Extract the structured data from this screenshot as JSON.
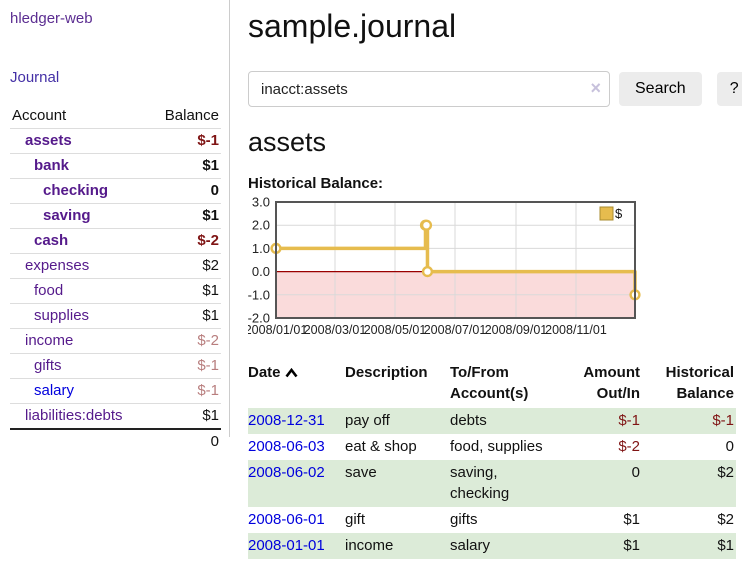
{
  "sidebar": {
    "app_title": "hledger-web",
    "journal_link": "Journal",
    "accounts_table": {
      "headers": {
        "account": "Account",
        "balance": "Balance"
      },
      "rows": [
        {
          "name": "assets",
          "balance": "$-1",
          "depth": 1,
          "bold": true,
          "balance_color": "neg-strong"
        },
        {
          "name": "bank",
          "balance": "$1",
          "depth": 2,
          "bold": true,
          "balance_color": "bal-normal"
        },
        {
          "name": "checking",
          "balance": "0",
          "depth": 3,
          "bold": true,
          "balance_color": "bal-normal"
        },
        {
          "name": "saving",
          "balance": "$1",
          "depth": 3,
          "bold": true,
          "balance_color": "bal-normal"
        },
        {
          "name": "cash",
          "balance": "$-2",
          "depth": 2,
          "bold": true,
          "balance_color": "neg-strong"
        },
        {
          "name": "expenses",
          "balance": "$2",
          "depth": 1,
          "bold": false,
          "balance_color": "bal-normal"
        },
        {
          "name": "food",
          "balance": "$1",
          "depth": 2,
          "bold": false,
          "balance_color": "bal-normal"
        },
        {
          "name": "supplies",
          "balance": "$1",
          "depth": 2,
          "bold": false,
          "balance_color": "bal-normal"
        },
        {
          "name": "income",
          "balance": "$-2",
          "depth": 1,
          "bold": false,
          "balance_color": "neg-soft"
        },
        {
          "name": "gifts",
          "balance": "$-1",
          "depth": 2,
          "bold": false,
          "balance_color": "neg-soft"
        },
        {
          "name": "salary",
          "balance": "$-1",
          "depth": 2,
          "bold": false,
          "balance_color": "neg-soft",
          "link_color": "blue"
        },
        {
          "name": "liabilities:debts",
          "balance": "$1",
          "depth": 1,
          "bold": false,
          "balance_color": "bal-normal"
        }
      ],
      "total": "0"
    }
  },
  "main": {
    "title": "sample.journal",
    "search": {
      "value": "inacct:assets",
      "clear_icon": "×",
      "button_label": "Search",
      "help_label": "?"
    },
    "account_heading": "assets",
    "chart_label": "Historical Balance:"
  },
  "chart_data": {
    "type": "line",
    "title": "Historical Balance:",
    "step": "step-after",
    "series": [
      {
        "name": "$",
        "color": "#e6bc4e",
        "points": [
          [
            "2008-01-01",
            1
          ],
          [
            "2008-06-01",
            2
          ],
          [
            "2008-06-02",
            2
          ],
          [
            "2008-06-03",
            0
          ],
          [
            "2008-12-31",
            -1
          ]
        ]
      }
    ],
    "x_range": [
      "2008-01-01",
      "2008-12-31"
    ],
    "x_tick_dates": [
      "2008-01-01",
      "2008-03-01",
      "2008-05-01",
      "2008-07-01",
      "2008-09-01",
      "2008-11-01"
    ],
    "x_tick_labels": [
      "2008/01/01",
      "2008/03/01",
      "2008/05/01",
      "2008/07/01",
      "2008/09/01",
      "2008/11/01"
    ],
    "y_ticks": [
      3,
      2,
      1,
      0,
      -1,
      -2
    ],
    "y_tick_labels": [
      "3.0",
      "2.0",
      "1.0",
      "0.0",
      "-1.0",
      "-2.0"
    ],
    "ylim": [
      -2,
      3
    ],
    "grid": true,
    "legend": {
      "label": "$",
      "position": "top-right",
      "swatch_color": "#e6bc4e"
    },
    "colors": {
      "negative_region": "#fadbdb",
      "zero_line": "#9a0000",
      "grid": "#d9d9d9",
      "border": "#555555"
    }
  },
  "transactions": {
    "headers": {
      "date": "Date",
      "description": "Description",
      "accounts": "To/From Account(s)",
      "amount": "Amount Out/In",
      "balance": "Historical Balance"
    },
    "sort": {
      "column": "date",
      "direction": "ascending"
    },
    "rows": [
      {
        "date": "2008-12-31",
        "description": "pay off",
        "accounts": "debts",
        "amount": "$-1",
        "balance": "$-1",
        "amount_negative": true,
        "balance_negative": true
      },
      {
        "date": "2008-06-03",
        "description": "eat & shop",
        "accounts": "food, supplies",
        "amount": "$-2",
        "balance": "0",
        "amount_negative": true,
        "balance_negative": false
      },
      {
        "date": "2008-06-02",
        "description": "save",
        "accounts": "saving, checking",
        "amount": "0",
        "balance": "$2",
        "amount_negative": false,
        "balance_negative": false
      },
      {
        "date": "2008-06-01",
        "description": "gift",
        "accounts": "gifts",
        "amount": "$1",
        "balance": "$2",
        "amount_negative": false,
        "balance_negative": false
      },
      {
        "date": "2008-01-01",
        "description": "income",
        "accounts": "salary",
        "amount": "$1",
        "balance": "$1",
        "amount_negative": false,
        "balance_negative": false
      }
    ]
  }
}
